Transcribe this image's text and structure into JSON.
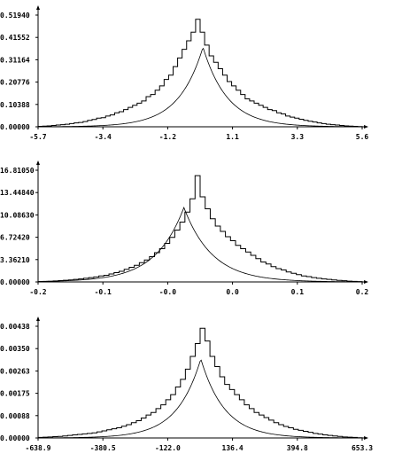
{
  "chart_data": [
    {
      "type": "line",
      "title": "",
      "xlabel": "",
      "ylabel": "",
      "xlim": [
        -5.7,
        5.6
      ],
      "ylim": [
        0,
        0.5194
      ],
      "x_tick_labels": [
        "-5.7",
        "-3.4",
        "-1.2",
        "1.1",
        "3.3",
        "5.6"
      ],
      "y_tick_labels": [
        "0.00000",
        "0.10388",
        "0.20776",
        "0.31164",
        "0.41552",
        "0.51940"
      ],
      "legend": "none",
      "grid": false,
      "peak_x": 0.05,
      "series": [
        {
          "style": "histogram-step",
          "values": [
            0.002,
            0.003,
            0.004,
            0.006,
            0.008,
            0.01,
            0.012,
            0.015,
            0.018,
            0.02,
            0.024,
            0.03,
            0.034,
            0.04,
            0.042,
            0.05,
            0.055,
            0.065,
            0.07,
            0.08,
            0.09,
            0.1,
            0.11,
            0.12,
            0.14,
            0.15,
            0.17,
            0.19,
            0.22,
            0.24,
            0.28,
            0.32,
            0.36,
            0.4,
            0.44,
            0.5,
            0.44,
            0.38,
            0.33,
            0.3,
            0.27,
            0.24,
            0.21,
            0.19,
            0.17,
            0.15,
            0.13,
            0.12,
            0.11,
            0.1,
            0.09,
            0.08,
            0.075,
            0.065,
            0.06,
            0.05,
            0.045,
            0.04,
            0.035,
            0.03,
            0.026,
            0.022,
            0.018,
            0.015,
            0.012,
            0.01,
            0.008,
            0.006,
            0.004,
            0.003,
            0.002,
            0.001
          ]
        },
        {
          "style": "smooth-curve",
          "peak": 0.37,
          "scale": 0.85
        }
      ]
    },
    {
      "type": "line",
      "title": "",
      "xlabel": "",
      "ylabel": "",
      "xlim": [
        -0.2,
        0.2
      ],
      "ylim": [
        0,
        16.8105
      ],
      "x_tick_labels": [
        "-0.2",
        "-0.1",
        "-0.0",
        "0.0",
        "0.1",
        "0.2"
      ],
      "y_tick_labels": [
        "0.00000",
        "3.36210",
        "6.72420",
        "10.08630",
        "13.44840",
        "16.81050"
      ],
      "legend": "none",
      "grid": false,
      "peak_x": -0.02,
      "series": [
        {
          "style": "histogram-step",
          "values": [
            0.05,
            0.08,
            0.1,
            0.15,
            0.2,
            0.25,
            0.3,
            0.38,
            0.45,
            0.55,
            0.65,
            0.75,
            0.9,
            1.0,
            1.2,
            1.4,
            1.6,
            1.9,
            2.2,
            2.5,
            2.9,
            3.3,
            3.8,
            4.4,
            5.0,
            5.8,
            6.7,
            7.8,
            9.0,
            10.5,
            12.5,
            16.0,
            12.8,
            11.0,
            9.5,
            8.4,
            7.6,
            6.8,
            6.2,
            5.5,
            5.0,
            4.5,
            4.0,
            3.5,
            3.0,
            2.7,
            2.3,
            2.0,
            1.8,
            1.5,
            1.3,
            1.1,
            0.9,
            0.8,
            0.65,
            0.55,
            0.45,
            0.38,
            0.3,
            0.24,
            0.18,
            0.12,
            0.08,
            0.05
          ]
        },
        {
          "style": "smooth-curve",
          "peak": 11.2,
          "scale": 0.035
        }
      ]
    },
    {
      "type": "line",
      "title": "",
      "xlabel": "",
      "ylabel": "",
      "xlim": [
        -638.9,
        653.3
      ],
      "ylim": [
        0,
        0.00438
      ],
      "x_tick_labels": [
        "-638.9",
        "-380.5",
        "-122.0",
        "136.4",
        "394.8",
        "653.3"
      ],
      "y_tick_labels": [
        "0.00000",
        "0.00088",
        "0.00175",
        "0.00263",
        "0.00350",
        "0.00438"
      ],
      "legend": "none",
      "grid": false,
      "peak_x": 10,
      "series": [
        {
          "style": "histogram-step",
          "values": [
            2e-05,
            3e-05,
            4e-05,
            5e-05,
            6e-05,
            8e-05,
            0.0001,
            0.00012,
            0.00014,
            0.00016,
            0.00018,
            0.0002,
            0.00024,
            0.00028,
            0.00032,
            0.00036,
            0.0004,
            0.00046,
            0.00052,
            0.0006,
            0.00068,
            0.00078,
            0.0009,
            0.001,
            0.00115,
            0.0013,
            0.0015,
            0.0017,
            0.002,
            0.0023,
            0.0027,
            0.0032,
            0.0037,
            0.0043,
            0.0038,
            0.0032,
            0.0028,
            0.0024,
            0.0021,
            0.0019,
            0.0017,
            0.0015,
            0.0013,
            0.00115,
            0.001,
            0.0009,
            0.0008,
            0.0007,
            0.0006,
            0.00052,
            0.00045,
            0.0004,
            0.00034,
            0.0003,
            0.00026,
            0.00022,
            0.00018,
            0.00015,
            0.00012,
            0.0001,
            8e-05,
            6e-05,
            4e-05,
            3e-05,
            2e-05,
            1e-05
          ]
        },
        {
          "style": "smooth-curve",
          "peak": 0.0031,
          "scale": 95
        }
      ]
    }
  ]
}
